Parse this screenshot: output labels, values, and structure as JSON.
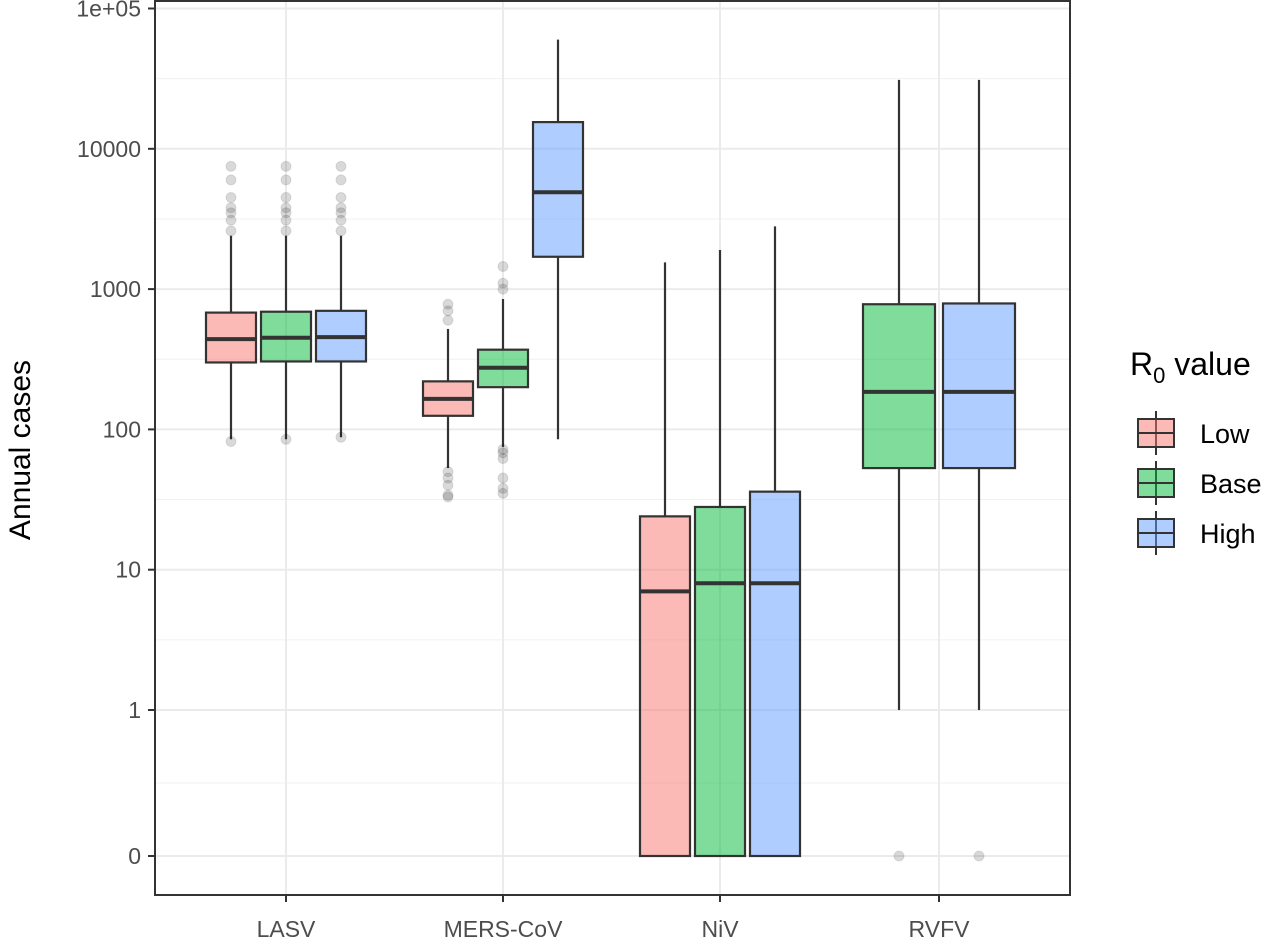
{
  "chart_data": {
    "type": "box",
    "ylabel": "Annual cases",
    "xlabel": "",
    "y_scale": "log",
    "y_ticks": [
      "0",
      "1",
      "10",
      "100",
      "1000",
      "10000",
      "1e+05"
    ],
    "y_tick_values": [
      0,
      1,
      10,
      100,
      1000,
      10000,
      100000
    ],
    "categories": [
      "LASV",
      "MERS-CoV",
      "NiV",
      "RVFV"
    ],
    "grid": true,
    "legend": {
      "title_base": "R",
      "title_sub": "0",
      "title_rest": " value",
      "position": "right"
    },
    "series": [
      {
        "name": "Low",
        "color": "#F8766D",
        "boxes": [
          {
            "category": "LASV",
            "min": 85,
            "q1": 300,
            "median": 440,
            "q3": 680,
            "max": 2400,
            "outliers": [
              82,
              2600,
              3100,
              3500,
              3800,
              4500,
              6000,
              7500
            ]
          },
          {
            "category": "MERS-CoV",
            "min": 53,
            "q1": 125,
            "median": 165,
            "q3": 220,
            "max": 520,
            "outliers": [
              33,
              34,
              40,
              45,
              50,
              600,
              700,
              780
            ]
          },
          {
            "category": "NiV",
            "min": 0,
            "q1": 0,
            "median": 7,
            "q3": 24,
            "max": 1550,
            "outliers": []
          }
        ]
      },
      {
        "name": "Base",
        "color": "#00BA38",
        "boxes": [
          {
            "category": "LASV",
            "min": 85,
            "q1": 305,
            "median": 450,
            "q3": 690,
            "max": 2400,
            "outliers": [
              85,
              2600,
              3100,
              3500,
              3800,
              4500,
              6000,
              7500
            ]
          },
          {
            "category": "MERS-CoV",
            "min": 75,
            "q1": 200,
            "median": 275,
            "q3": 370,
            "max": 850,
            "outliers": [
              35,
              38,
              45,
              62,
              68,
              72,
              1000,
              1100,
              1450
            ]
          },
          {
            "category": "NiV",
            "min": 0,
            "q1": 0,
            "median": 8,
            "q3": 28,
            "max": 1900,
            "outliers": []
          },
          {
            "category": "RVFV",
            "min": 1,
            "q1": 53,
            "median": 185,
            "q3": 780,
            "max": 31000,
            "outliers": [
              0
            ]
          }
        ]
      },
      {
        "name": "High",
        "color": "#619CFF",
        "boxes": [
          {
            "category": "LASV",
            "min": 88,
            "q1": 305,
            "median": 455,
            "q3": 700,
            "max": 2400,
            "outliers": [
              88,
              2600,
              3100,
              3500,
              3800,
              4500,
              6000,
              7500
            ]
          },
          {
            "category": "MERS-CoV",
            "min": 85,
            "q1": 1700,
            "median": 4900,
            "q3": 15500,
            "max": 60000,
            "outliers": []
          },
          {
            "category": "NiV",
            "min": 0,
            "q1": 0,
            "median": 8,
            "q3": 36,
            "max": 2800,
            "outliers": []
          },
          {
            "category": "RVFV",
            "min": 1,
            "q1": 53,
            "median": 185,
            "q3": 790,
            "max": 31000,
            "outliers": [
              0
            ]
          }
        ]
      }
    ]
  }
}
